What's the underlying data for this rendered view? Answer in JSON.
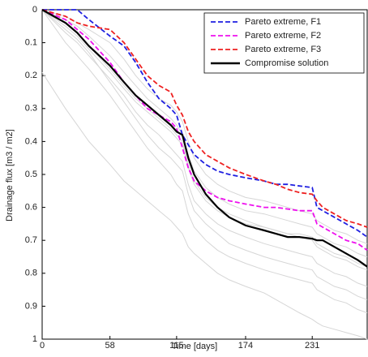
{
  "chart_data": {
    "type": "line",
    "xlabel": "Time [days]",
    "ylabel": "Drainage flux [m3 / m2]",
    "xlim": [
      0,
      278
    ],
    "ylim": [
      0,
      1
    ],
    "y_inverted": true,
    "xticks": [
      0,
      58,
      115,
      174,
      231
    ],
    "yticks": [
      0,
      0.1,
      0.2,
      0.3,
      0.4,
      0.5,
      0.6,
      0.7,
      0.8,
      0.9,
      1
    ],
    "legend": "upper right",
    "x": [
      0,
      20,
      30,
      40,
      58,
      70,
      80,
      90,
      100,
      110,
      115,
      120,
      125,
      130,
      140,
      150,
      160,
      174,
      190,
      200,
      210,
      220,
      231,
      235,
      240,
      250,
      260,
      270,
      278
    ],
    "series": [
      {
        "color": "#d6d6d6",
        "values": [
          0.19,
          0.3,
          0.35,
          0.4,
          0.47,
          0.52,
          0.55,
          0.58,
          0.61,
          0.64,
          0.66,
          0.68,
          0.72,
          0.74,
          0.77,
          0.8,
          0.82,
          0.84,
          0.86,
          0.88,
          0.9,
          0.92,
          0.94,
          0.95,
          0.96,
          0.97,
          0.98,
          0.99,
          1
        ]
      },
      {
        "color": "#d6d6d6",
        "values": [
          0,
          0.1,
          0.14,
          0.18,
          0.26,
          0.32,
          0.37,
          0.42,
          0.46,
          0.5,
          0.53,
          0.55,
          0.62,
          0.66,
          0.7,
          0.73,
          0.75,
          0.77,
          0.79,
          0.8,
          0.81,
          0.82,
          0.83,
          0.85,
          0.86,
          0.88,
          0.89,
          0.91,
          0.92
        ]
      },
      {
        "color": "#d6d6d6",
        "values": [
          0,
          0.07,
          0.1,
          0.14,
          0.21,
          0.26,
          0.31,
          0.35,
          0.38,
          0.42,
          0.44,
          0.46,
          0.53,
          0.58,
          0.62,
          0.65,
          0.67,
          0.69,
          0.71,
          0.72,
          0.73,
          0.74,
          0.75,
          0.77,
          0.78,
          0.8,
          0.81,
          0.83,
          0.84
        ]
      },
      {
        "color": "#d6d6d6",
        "values": [
          0,
          0.05,
          0.08,
          0.12,
          0.19,
          0.24,
          0.28,
          0.31,
          0.34,
          0.37,
          0.39,
          0.41,
          0.48,
          0.53,
          0.58,
          0.61,
          0.63,
          0.65,
          0.66,
          0.67,
          0.68,
          0.69,
          0.7,
          0.72,
          0.73,
          0.75,
          0.76,
          0.78,
          0.79
        ]
      },
      {
        "color": "#d6d6d6",
        "values": [
          0,
          0.03,
          0.05,
          0.08,
          0.14,
          0.19,
          0.23,
          0.27,
          0.3,
          0.33,
          0.35,
          0.38,
          0.44,
          0.49,
          0.54,
          0.57,
          0.59,
          0.61,
          0.62,
          0.63,
          0.64,
          0.65,
          0.66,
          0.68,
          0.69,
          0.71,
          0.72,
          0.74,
          0.75
        ]
      },
      {
        "color": "#d6d6d6",
        "values": [
          0,
          0.02,
          0.04,
          0.06,
          0.1,
          0.15,
          0.2,
          0.24,
          0.27,
          0.29,
          0.31,
          0.34,
          0.4,
          0.45,
          0.5,
          0.53,
          0.55,
          0.57,
          0.58,
          0.59,
          0.6,
          0.61,
          0.62,
          0.64,
          0.65,
          0.67,
          0.68,
          0.7,
          0.71
        ]
      },
      {
        "color": "#d6d6d6",
        "values": [
          0,
          0.04,
          0.07,
          0.11,
          0.18,
          0.23,
          0.27,
          0.3,
          0.33,
          0.36,
          0.38,
          0.4,
          0.47,
          0.52,
          0.57,
          0.6,
          0.62,
          0.64,
          0.66,
          0.67,
          0.68,
          0.68,
          0.69,
          0.71,
          0.72,
          0.74,
          0.75,
          0.77,
          0.78
        ]
      },
      {
        "color": "#d6d6d6",
        "values": [
          0,
          0.06,
          0.09,
          0.13,
          0.22,
          0.28,
          0.33,
          0.38,
          0.42,
          0.45,
          0.47,
          0.49,
          0.56,
          0.61,
          0.65,
          0.68,
          0.71,
          0.73,
          0.75,
          0.76,
          0.77,
          0.78,
          0.79,
          0.81,
          0.82,
          0.84,
          0.85,
          0.87,
          0.88
        ]
      },
      {
        "name": "Pareto extreme, F1",
        "color": "#1f1fe0",
        "dash": true,
        "values": [
          0,
          0,
          0,
          0.03,
          0.08,
          0.11,
          0.16,
          0.22,
          0.27,
          0.3,
          0.32,
          0.38,
          0.41,
          0.44,
          0.47,
          0.49,
          0.5,
          0.51,
          0.52,
          0.53,
          0.53,
          0.535,
          0.54,
          0.6,
          0.61,
          0.63,
          0.65,
          0.67,
          0.69
        ]
      },
      {
        "name": "Pareto extreme, F2",
        "color": "#ee10ee",
        "dash": true,
        "values": [
          0,
          0.03,
          0.06,
          0.09,
          0.16,
          0.22,
          0.26,
          0.3,
          0.32,
          0.34,
          0.36,
          0.42,
          0.48,
          0.52,
          0.55,
          0.57,
          0.58,
          0.59,
          0.6,
          0.6,
          0.605,
          0.61,
          0.61,
          0.65,
          0.66,
          0.68,
          0.7,
          0.71,
          0.73
        ]
      },
      {
        "name": "Pareto extreme, F3",
        "color": "#ee2020",
        "dash": true,
        "values": [
          0,
          0.02,
          0.04,
          0.05,
          0.06,
          0.1,
          0.15,
          0.2,
          0.23,
          0.25,
          0.29,
          0.32,
          0.37,
          0.4,
          0.44,
          0.46,
          0.48,
          0.5,
          0.52,
          0.53,
          0.545,
          0.555,
          0.56,
          0.58,
          0.6,
          0.62,
          0.64,
          0.65,
          0.66
        ]
      },
      {
        "name": "Compromise solution",
        "color": "#000000",
        "dash": false,
        "values": [
          0,
          0.04,
          0.07,
          0.11,
          0.17,
          0.22,
          0.26,
          0.29,
          0.32,
          0.35,
          0.37,
          0.38,
          0.45,
          0.5,
          0.56,
          0.6,
          0.63,
          0.655,
          0.67,
          0.68,
          0.69,
          0.69,
          0.695,
          0.7,
          0.7,
          0.72,
          0.74,
          0.76,
          0.78
        ]
      }
    ]
  }
}
